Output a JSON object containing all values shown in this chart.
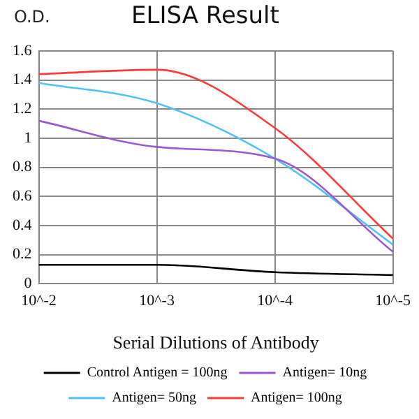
{
  "chart_data": {
    "type": "line",
    "title": "ELISA Result",
    "ylabel": "O.D.",
    "xlabel": "Serial Dilutions of Antibody",
    "categories": [
      "10^-2",
      "10^-3",
      "10^-4",
      "10^-5"
    ],
    "series": [
      {
        "name": "Control Antigen = 100ng",
        "color": "#000000",
        "values": [
          0.13,
          0.13,
          0.08,
          0.06
        ]
      },
      {
        "name": "Antigen= 10ng",
        "color": "#9b59d0",
        "values": [
          1.12,
          0.94,
          0.86,
          0.22
        ]
      },
      {
        "name": "Antigen= 50ng",
        "color": "#4fc3f7",
        "values": [
          1.38,
          1.24,
          0.86,
          0.27
        ]
      },
      {
        "name": "Antigen= 100ng",
        "color": "#ff3b3b",
        "values": [
          1.44,
          1.47,
          1.07,
          0.31
        ]
      }
    ],
    "ylim": [
      0,
      1.6
    ],
    "yticks": [
      0,
      0.2,
      0.4,
      0.6,
      0.8,
      1,
      1.2,
      1.4,
      1.6
    ],
    "grid": true,
    "legend": "bottom",
    "marker": "none",
    "line_style": "solid"
  }
}
